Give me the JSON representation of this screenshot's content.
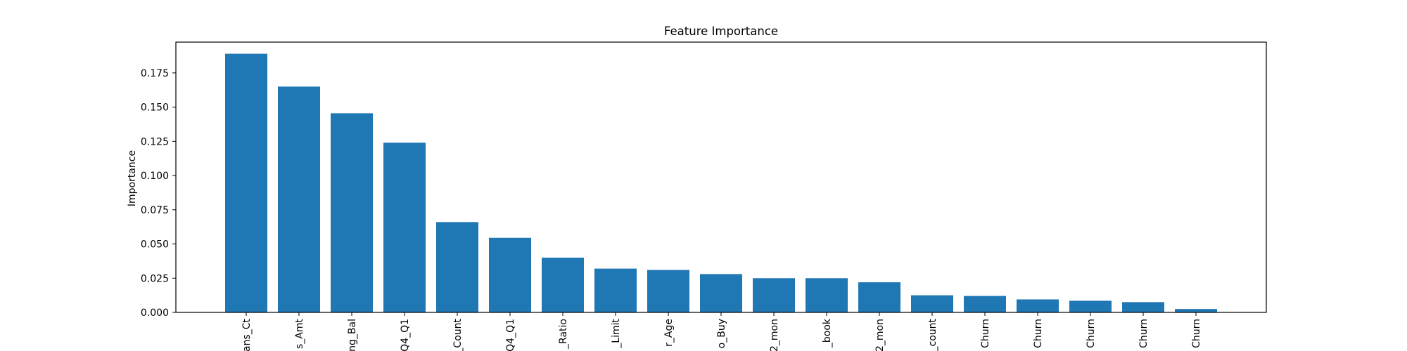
{
  "chart_data": {
    "type": "bar",
    "title": "Feature Importance",
    "xlabel": "",
    "ylabel": "Importance",
    "ylim": [
      0,
      0.1975
    ],
    "yticks": [
      0.0,
      0.025,
      0.05,
      0.075,
      0.1,
      0.125,
      0.15,
      0.175
    ],
    "ytick_labels": [
      "0.000",
      "0.025",
      "0.050",
      "0.075",
      "0.100",
      "0.125",
      "0.150",
      "0.175"
    ],
    "categories": [
      "ans_Ct",
      "s_Amt",
      "ng_Bal",
      "Q4_Q1",
      "_Count",
      "Q4_Q1",
      "_Ratio",
      "_Limit",
      "r_Age",
      "o_Buy",
      "2_mon",
      "_book",
      "2_mon",
      "_count",
      "Churn",
      "Churn",
      "Churn",
      "Churn",
      "Churn"
    ],
    "values": [
      0.189,
      0.165,
      0.1455,
      0.124,
      0.066,
      0.0545,
      0.04,
      0.032,
      0.031,
      0.028,
      0.025,
      0.025,
      0.022,
      0.0125,
      0.012,
      0.0095,
      0.0085,
      0.0075,
      0.0025
    ],
    "color": "#1f77b4",
    "grid": false,
    "legend": "none"
  }
}
